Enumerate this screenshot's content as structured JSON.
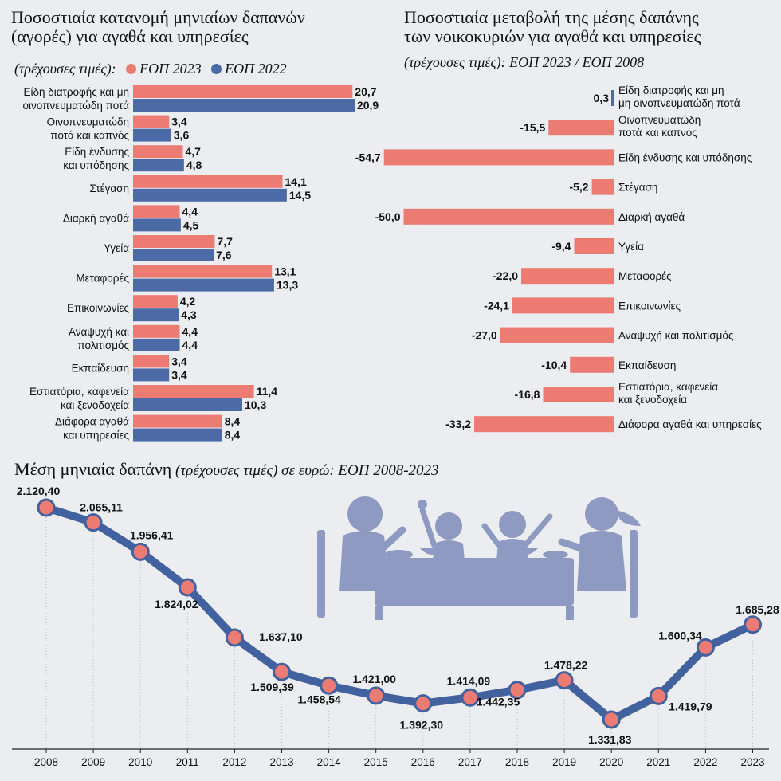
{
  "colors": {
    "series_2023": "#ec7b74",
    "series_2022": "#4b6aa6",
    "line": "#42619f",
    "line_marker": "#ec7b74",
    "illustration": "#8e9ac2"
  },
  "left_panel": {
    "title_line1": "Ποσοστιαία κατανομή μηνιαίων δαπανών",
    "title_line2": "(αγορές) για αγαθά και υπηρεσίες",
    "subtitle": "(τρέχουσες τιμές):",
    "legend_2023": "ΕΟΠ 2023",
    "legend_2022": "ΕΟΠ 2022"
  },
  "right_panel": {
    "title_line1": "Ποσοστιαία μεταβολή της μέσης δαπάνης",
    "title_line2": "των νοικοκυριών για αγαθά και υπηρεσίες",
    "subtitle": "(τρέχουσες τιμές): ΕΟΠ 2023 / ΕΟΠ 2008"
  },
  "bottom_panel": {
    "title": "Μέση μηνιαία δαπάνη",
    "subtitle": " (τρέχουσες τιμές) σε ευρώ: ΕΟΠ 2008-2023"
  },
  "chart_data": [
    {
      "type": "bar",
      "orientation": "horizontal",
      "categories": [
        [
          "Είδη διατροφής και μη",
          "οινοπνευματώδη ποτά"
        ],
        [
          "Οινοπνευματώδη",
          "ποτά και καπνός"
        ],
        [
          "Είδη ένδυσης",
          "και υπόδησης"
        ],
        [
          "Στέγαση"
        ],
        [
          "Διαρκή αγαθά"
        ],
        [
          "Υγεία"
        ],
        [
          "Μεταφορές"
        ],
        [
          "Επικοινωνίες"
        ],
        [
          "Αναψυχή και",
          "πολιτισμός"
        ],
        [
          "Εκπαίδευση"
        ],
        [
          "Εστιατόρια, καφενεία",
          "και ξενοδοχεία"
        ],
        [
          "Διάφορα αγαθά",
          "και υπηρεσίες"
        ]
      ],
      "series": [
        {
          "name": "ΕΟΠ 2023",
          "values": [
            20.7,
            3.4,
            4.7,
            14.1,
            4.4,
            7.7,
            13.1,
            4.2,
            4.4,
            3.4,
            11.4,
            8.4
          ],
          "labels": [
            "20,7",
            "3,4",
            "4,7",
            "14,1",
            "4,4",
            "7,7",
            "13,1",
            "4,2",
            "4,4",
            "3,4",
            "11,4",
            "8,4"
          ]
        },
        {
          "name": "ΕΟΠ 2022",
          "values": [
            20.9,
            3.6,
            4.8,
            14.5,
            4.5,
            7.6,
            13.3,
            4.3,
            4.4,
            3.4,
            10.3,
            8.4
          ],
          "labels": [
            "20,9",
            "3,6",
            "4,8",
            "14,5",
            "4,5",
            "7,6",
            "13,3",
            "4,3",
            "4,4",
            "3,4",
            "10,3",
            "8,4"
          ]
        }
      ],
      "xlim": [
        0,
        23
      ]
    },
    {
      "type": "bar",
      "orientation": "horizontal",
      "categories": [
        [
          "Είδη διατροφής και μη",
          "μη οινοπνευματώδη ποτά"
        ],
        [
          "Οινοπνευματώδη",
          "ποτά και καπνός"
        ],
        [
          "Είδη ένδυσης και υπόδησης"
        ],
        [
          "Στέγαση"
        ],
        [
          "Διαρκή αγαθά"
        ],
        [
          "Υγεία"
        ],
        [
          "Μεταφορές"
        ],
        [
          "Επικοινωνίες"
        ],
        [
          "Αναψυχή και πολιτισμός"
        ],
        [
          "Εκπαίδευση"
        ],
        [
          "Εστιατόρια, καφενεία",
          "και ξενοδοχεία"
        ],
        [
          "Διάφορα αγαθά και υπηρεσίες"
        ]
      ],
      "values": [
        0.3,
        -15.5,
        -54.7,
        -5.2,
        -50.0,
        -9.4,
        -22.0,
        -24.1,
        -27.0,
        -10.4,
        -16.8,
        -33.2
      ],
      "labels": [
        "0,3",
        "-15,5",
        "-54,7",
        "-5,2",
        "-50,0",
        "-9,4",
        "-22,0",
        "-24,1",
        "-27,0",
        "-10,4",
        "-16,8",
        "-33,2"
      ],
      "xlim": [
        -56,
        1
      ]
    },
    {
      "type": "line",
      "x": [
        "2008",
        "2009",
        "2010",
        "2011",
        "2012",
        "2013",
        "2014",
        "2015",
        "2016",
        "2017",
        "2018",
        "2019",
        "2020",
        "2021",
        "2022",
        "2023"
      ],
      "values": [
        2120.4,
        2065.11,
        1956.41,
        1824.02,
        1637.1,
        1509.39,
        1458.54,
        1421.0,
        1392.3,
        1414.09,
        1442.35,
        1478.22,
        1331.83,
        1419.79,
        1600.34,
        1685.28
      ],
      "labels": [
        "2.120,40",
        "2.065,11",
        "1.956,41",
        "1.824,02",
        "1.637,10",
        "1.509,39",
        "1.458,54",
        "1.421,00",
        "1.392,30",
        "1.414,09",
        "1.442,35",
        "1.478,22",
        "1.331,83",
        "1.419,79",
        "1.600,34",
        "1.685,28"
      ],
      "ylim": [
        1280,
        2160
      ]
    }
  ]
}
